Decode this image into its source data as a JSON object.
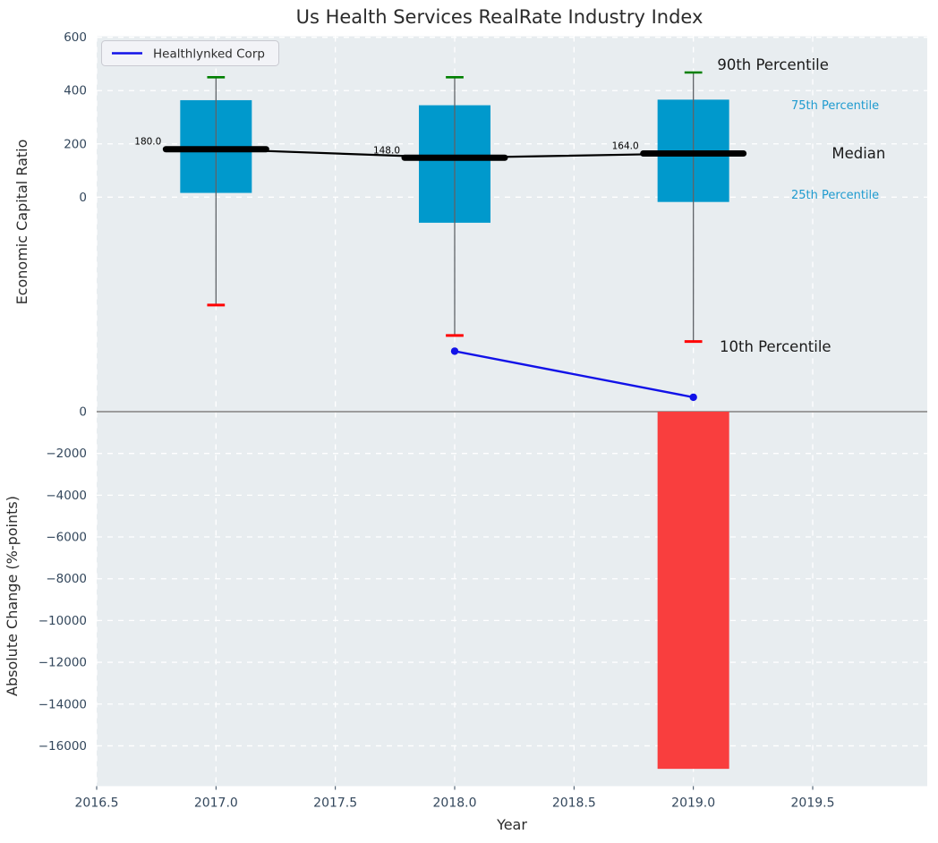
{
  "chart_data": {
    "type": "boxplot",
    "title": "Us Health Services RealRate Industry Index",
    "xlabel": "Year",
    "xlim": [
      2016.5,
      2019.98
    ],
    "x_ticks": [
      {
        "v": 2016.5,
        "label": "2016.5"
      },
      {
        "v": 2017.0,
        "label": "2017.0"
      },
      {
        "v": 2017.5,
        "label": "2017.5"
      },
      {
        "v": 2018.0,
        "label": "2018.0"
      },
      {
        "v": 2018.5,
        "label": "2018.5"
      },
      {
        "v": 2019.0,
        "label": "2019.0"
      },
      {
        "v": 2019.5,
        "label": "2019.5"
      }
    ],
    "panels": {
      "top": {
        "ylabel": "Economic Capital Ratio",
        "ylim": [
          -795,
          604
        ],
        "y_ticks": [
          {
            "v": 600,
            "label": "600"
          },
          {
            "v": 400,
            "label": "400"
          },
          {
            "v": 200,
            "label": "200"
          },
          {
            "v": 0,
            "label": "0"
          }
        ],
        "years": [
          2017,
          2018,
          2019
        ],
        "box_width_years": 0.3,
        "median_seg_half_years": 0.21,
        "cap_half_years": 0.037,
        "series": {
          "p90": [
            450,
            450,
            468
          ],
          "p75": [
            364,
            345,
            366
          ],
          "median": [
            180,
            148,
            164
          ],
          "p25": [
            16,
            -96,
            -18
          ],
          "p10": [
            -405,
            -519,
            -542
          ]
        },
        "median_value_labels": [
          "180.0",
          "148.0",
          "164.0"
        ],
        "company_line": {
          "name": "Healthlynked Corp",
          "points": [
            {
              "x": 2018,
              "y": -578
            },
            {
              "x": 2019,
              "y": -751
            }
          ]
        },
        "annotations": [
          {
            "text": "90th Percentile",
            "x": 2019.1,
            "y": 496,
            "color": "#1a1a1a",
            "size": 16.5
          },
          {
            "text": "75th Percentile",
            "x": 2019.41,
            "y": 345,
            "color": "#1f9bcf",
            "size": 13
          },
          {
            "text": "Median",
            "x": 2019.58,
            "y": 163,
            "color": "#1a1a1a",
            "size": 16.5
          },
          {
            "text": "25th Percentile",
            "x": 2019.41,
            "y": 8,
            "color": "#1f9bcf",
            "size": 13
          },
          {
            "text": "10th Percentile",
            "x": 2019.11,
            "y": -563,
            "color": "#1a1a1a",
            "size": 16.5
          }
        ]
      },
      "bottom": {
        "ylabel": "Absolute Change (%-points)",
        "ylim": [
          -17930,
          128
        ],
        "y_ticks": [
          {
            "v": 0,
            "label": "0"
          },
          {
            "v": -2000,
            "label": "−2000"
          },
          {
            "v": -4000,
            "label": "−4000"
          },
          {
            "v": -6000,
            "label": "−6000"
          },
          {
            "v": -8000,
            "label": "−8000"
          },
          {
            "v": -10000,
            "label": "−10000"
          },
          {
            "v": -12000,
            "label": "−12000"
          },
          {
            "v": -14000,
            "label": "−14000"
          },
          {
            "v": -16000,
            "label": "−16000"
          }
        ],
        "zero_line": 0,
        "bars": [
          {
            "x": 2019,
            "value": -17100,
            "width_years": 0.3
          }
        ]
      }
    },
    "legend": {
      "label": "Healthlynked Corp"
    },
    "colors": {
      "axes_bg": "#e8edf0",
      "grid": "#ffffff",
      "box_fill": "#0099cc",
      "whisker": "#5f6368",
      "cap_top": "#008000",
      "cap_bottom": "#ff0000",
      "median": "#000000",
      "company": "#1212e8",
      "bar": "#f93e3e",
      "zero_line": "#9c9c9c",
      "tick_text": "#33475c",
      "text": "#2b2b2b",
      "cyan_text": "#1f9bcf",
      "legend_bg": "#f2f3f7",
      "legend_border": "#c9cad1"
    }
  }
}
